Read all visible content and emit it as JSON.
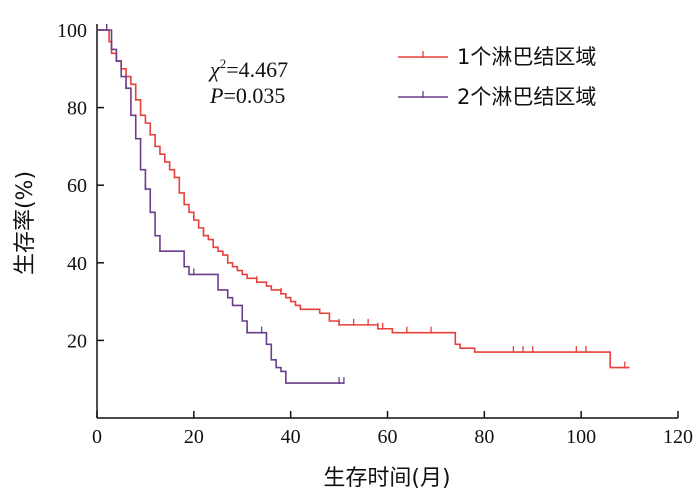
{
  "chart_data": {
    "type": "line",
    "subtype": "kaplan-meier",
    "xlabel": "生存时间(月)",
    "ylabel": "生存率(%)",
    "xlim": [
      0,
      120
    ],
    "ylim": [
      0,
      100
    ],
    "xticks": [
      0,
      20,
      40,
      60,
      80,
      100,
      120
    ],
    "yticks": [
      20,
      40,
      60,
      80,
      100
    ],
    "grid": false,
    "legend_position": "top-right",
    "annotations": {
      "chi_symbol": "χ",
      "chi_sup": "2",
      "chi_value": "=4.467",
      "p_symbol": "P",
      "p_value": "=0.035"
    },
    "series": [
      {
        "name": "1个淋巴结区域",
        "color": "#e8403a",
        "points": [
          [
            0,
            100
          ],
          [
            2,
            100
          ],
          [
            2.5,
            97
          ],
          [
            3,
            94
          ],
          [
            4,
            92
          ],
          [
            5,
            90
          ],
          [
            6,
            88
          ],
          [
            7,
            86
          ],
          [
            8,
            82
          ],
          [
            9,
            78
          ],
          [
            10,
            76
          ],
          [
            11,
            73
          ],
          [
            12,
            70
          ],
          [
            13,
            68
          ],
          [
            14,
            66
          ],
          [
            15,
            64
          ],
          [
            16,
            62
          ],
          [
            17,
            58
          ],
          [
            18,
            55
          ],
          [
            19,
            53
          ],
          [
            20,
            51
          ],
          [
            21,
            49
          ],
          [
            22,
            47
          ],
          [
            23,
            46
          ],
          [
            24,
            44
          ],
          [
            25,
            43
          ],
          [
            26,
            42
          ],
          [
            27,
            40
          ],
          [
            28,
            39
          ],
          [
            29,
            38
          ],
          [
            30,
            37
          ],
          [
            31,
            36
          ],
          [
            32,
            36
          ],
          [
            33,
            35
          ],
          [
            34,
            35
          ],
          [
            35,
            34
          ],
          [
            36,
            33
          ],
          [
            38,
            32
          ],
          [
            39,
            31
          ],
          [
            40,
            30
          ],
          [
            41,
            29
          ],
          [
            42,
            28
          ],
          [
            44,
            28
          ],
          [
            46,
            27
          ],
          [
            48,
            25
          ],
          [
            50,
            24
          ],
          [
            56,
            24
          ],
          [
            58,
            23
          ],
          [
            60,
            23
          ],
          [
            61,
            22
          ],
          [
            73,
            22
          ],
          [
            74,
            19
          ],
          [
            75,
            18
          ],
          [
            78,
            17
          ],
          [
            106,
            17
          ],
          [
            106,
            13
          ],
          [
            110,
            13
          ]
        ],
        "censor_x": [
          2,
          4,
          8,
          11,
          16,
          22,
          27,
          33,
          38,
          50,
          53,
          56,
          58,
          59,
          64,
          69,
          86,
          88,
          90,
          99,
          101,
          109
        ]
      },
      {
        "name": "2个淋巴结区域",
        "color": "#6b3e8c",
        "points": [
          [
            0,
            100
          ],
          [
            2,
            100
          ],
          [
            3,
            95
          ],
          [
            4,
            92
          ],
          [
            5,
            88
          ],
          [
            6,
            85
          ],
          [
            7,
            78
          ],
          [
            8,
            72
          ],
          [
            9,
            64
          ],
          [
            10,
            59
          ],
          [
            11,
            53
          ],
          [
            12,
            47
          ],
          [
            13,
            43
          ],
          [
            15,
            43
          ],
          [
            18,
            39
          ],
          [
            19,
            37
          ],
          [
            24,
            37
          ],
          [
            25,
            33
          ],
          [
            27,
            31
          ],
          [
            28,
            29
          ],
          [
            30,
            25
          ],
          [
            31,
            22
          ],
          [
            34,
            22
          ],
          [
            35,
            19
          ],
          [
            36,
            15
          ],
          [
            37,
            13
          ],
          [
            38,
            12
          ],
          [
            39,
            9
          ],
          [
            51,
            9
          ]
        ],
        "censor_x": [
          2,
          6,
          10,
          20,
          31,
          34,
          50,
          51
        ]
      }
    ]
  }
}
